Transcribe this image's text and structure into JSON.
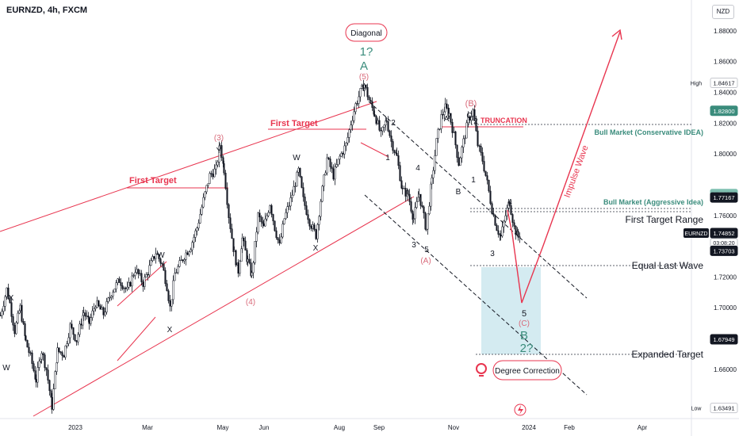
{
  "symbol_title": "EURNZD, 4h, FXCM",
  "currency": "NZD",
  "colors": {
    "up": "#131722",
    "accent": "#e8354f",
    "wave_dark": "#3b4a5a",
    "teal": "#3a8c7c",
    "pink": "#d96a7a",
    "box": "#cde7ee"
  },
  "chart_data": {
    "type": "candlestick",
    "title": "EURNZD, 4h, FXCM",
    "x_ticks": [
      "2023",
      "Mar",
      "May",
      "Jun",
      "Aug",
      "Sep",
      "Nov",
      "2024",
      "Feb",
      "Apr"
    ],
    "ylim": [
      1.628,
      1.9
    ],
    "y_ticks": [
      "1.88000",
      "1.86000",
      "1.84000",
      "1.82000",
      "1.80000",
      "1.76000",
      "1.72000",
      "1.70000",
      "1.66000"
    ],
    "series": [
      {
        "name": "EURNZD",
        "values_path": [
          [
            0,
            1.695
          ],
          [
            8,
            1.712
          ],
          [
            12,
            1.703
          ],
          [
            18,
            1.685
          ],
          [
            25,
            1.7
          ],
          [
            32,
            1.678
          ],
          [
            38,
            1.668
          ],
          [
            45,
            1.653
          ],
          [
            52,
            1.672
          ],
          [
            58,
            1.66
          ],
          [
            65,
            1.636
          ],
          [
            72,
            1.672
          ],
          [
            80,
            1.67
          ],
          [
            88,
            1.688
          ],
          [
            96,
            1.679
          ],
          [
            105,
            1.697
          ],
          [
            112,
            1.69
          ],
          [
            120,
            1.703
          ],
          [
            130,
            1.696
          ],
          [
            140,
            1.71
          ],
          [
            150,
            1.718
          ],
          [
            160,
            1.711
          ],
          [
            170,
            1.725
          ],
          [
            180,
            1.716
          ],
          [
            188,
            1.726
          ],
          [
            196,
            1.736
          ],
          [
            204,
            1.728
          ],
          [
            210,
            1.714
          ],
          [
            214,
            1.7
          ],
          [
            220,
            1.722
          ],
          [
            232,
            1.734
          ],
          [
            240,
            1.74
          ],
          [
            248,
            1.752
          ],
          [
            256,
            1.77
          ],
          [
            264,
            1.786
          ],
          [
            272,
            1.79
          ],
          [
            277,
            1.806
          ],
          [
            282,
            1.79
          ],
          [
            288,
            1.76
          ],
          [
            295,
            1.735
          ],
          [
            300,
            1.724
          ],
          [
            305,
            1.745
          ],
          [
            312,
            1.73
          ],
          [
            317,
            1.721
          ],
          [
            325,
            1.76
          ],
          [
            332,
            1.752
          ],
          [
            340,
            1.768
          ],
          [
            346,
            1.752
          ],
          [
            352,
            1.74
          ],
          [
            358,
            1.758
          ],
          [
            366,
            1.77
          ],
          [
            376,
            1.789
          ],
          [
            382,
            1.77
          ],
          [
            390,
            1.756
          ],
          [
            398,
            1.747
          ],
          [
            404,
            1.77
          ],
          [
            412,
            1.797
          ],
          [
            420,
            1.786
          ],
          [
            428,
            1.798
          ],
          [
            436,
            1.806
          ],
          [
            442,
            1.82
          ],
          [
            448,
            1.832
          ],
          [
            454,
            1.84
          ],
          [
            459,
            1.845
          ],
          [
            465,
            1.835
          ],
          [
            472,
            1.826
          ],
          [
            480,
            1.812
          ],
          [
            487,
            1.822
          ],
          [
            493,
            1.808
          ],
          [
            500,
            1.798
          ],
          [
            507,
            1.776
          ],
          [
            514,
            1.774
          ],
          [
            521,
            1.758
          ],
          [
            528,
            1.774
          ],
          [
            532,
            1.764
          ],
          [
            537,
            1.751
          ],
          [
            544,
            1.782
          ],
          [
            550,
            1.808
          ],
          [
            556,
            1.824
          ],
          [
            561,
            1.83
          ],
          [
            566,
            1.826
          ],
          [
            572,
            1.812
          ],
          [
            578,
            1.794
          ],
          [
            584,
            1.808
          ],
          [
            590,
            1.822
          ],
          [
            596,
            1.828
          ],
          [
            602,
            1.806
          ],
          [
            608,
            1.796
          ],
          [
            614,
            1.781
          ],
          [
            620,
            1.764
          ],
          [
            626,
            1.752
          ],
          [
            631,
            1.746
          ],
          [
            637,
            1.76
          ],
          [
            642,
            1.769
          ],
          [
            648,
            1.752
          ],
          [
            653,
            1.746
          ],
          [
            656,
            1.749
          ]
        ]
      }
    ],
    "price_labels": [
      {
        "text": "High",
        "value": "1.84617",
        "y": 1.84617,
        "style": "plain"
      },
      {
        "text": "",
        "value": "1.82800",
        "y": 1.828,
        "style": "teal"
      },
      {
        "text": "",
        "value": "1.77393",
        "y": 1.77393,
        "style": "teal-light"
      },
      {
        "text": "",
        "value": "1.77167",
        "y": 1.77167,
        "style": "dark"
      },
      {
        "text": "EURNZD",
        "value": "1.74852",
        "y": 1.74852,
        "style": "dark",
        "countdown": "03:08:20"
      },
      {
        "text": "",
        "value": "1.73703",
        "y": 1.73703,
        "style": "dark"
      },
      {
        "text": "",
        "value": "1.67949",
        "y": 1.67949,
        "style": "dark"
      },
      {
        "text": "Low",
        "value": "1.63491",
        "y": 1.63491,
        "style": "plain"
      }
    ],
    "annotations": {
      "diagonal": "Diagonal",
      "wave1_q": "1?",
      "waveA_big": "A",
      "wave5_paren": "(5)",
      "waveB_paren": "(B)",
      "truncation": "TRUNCATION",
      "bull_conservative": "Bull Market (Conservative IDEA)",
      "bull_aggressive": "Bull Market (Aggressive Idea)",
      "first_target_range": "First Target Range",
      "equal_last_wave": "Equal Last Wave",
      "expanded_target": "Expanded Target",
      "degree_correction": "Degree Correction",
      "impulse_wave": "Impulse Wave",
      "first_target_a": "First Target",
      "first_target_b": "First Target",
      "wave3_paren": "(3)",
      "wave4_paren": "(4)",
      "waveA_paren": "(A)",
      "waveC_paren": "(C)",
      "wave_B_big": "B",
      "wave_2q_big": "2?",
      "w5": "5",
      "small": {
        "X1": "X",
        "W1": "W",
        "W2": "W",
        "X2": "X",
        "Y1": "Y",
        "W3": "W",
        "X3": "X",
        "Y2": "Y",
        "n2": "2",
        "n1": "1",
        "n4a": "4",
        "n5a": "5",
        "n3a": "3",
        "A1": "A",
        "C1": "C",
        "n2b": "2",
        "B1": "B",
        "n1b": "1",
        "n4b": "4",
        "n3b": "3"
      }
    }
  }
}
